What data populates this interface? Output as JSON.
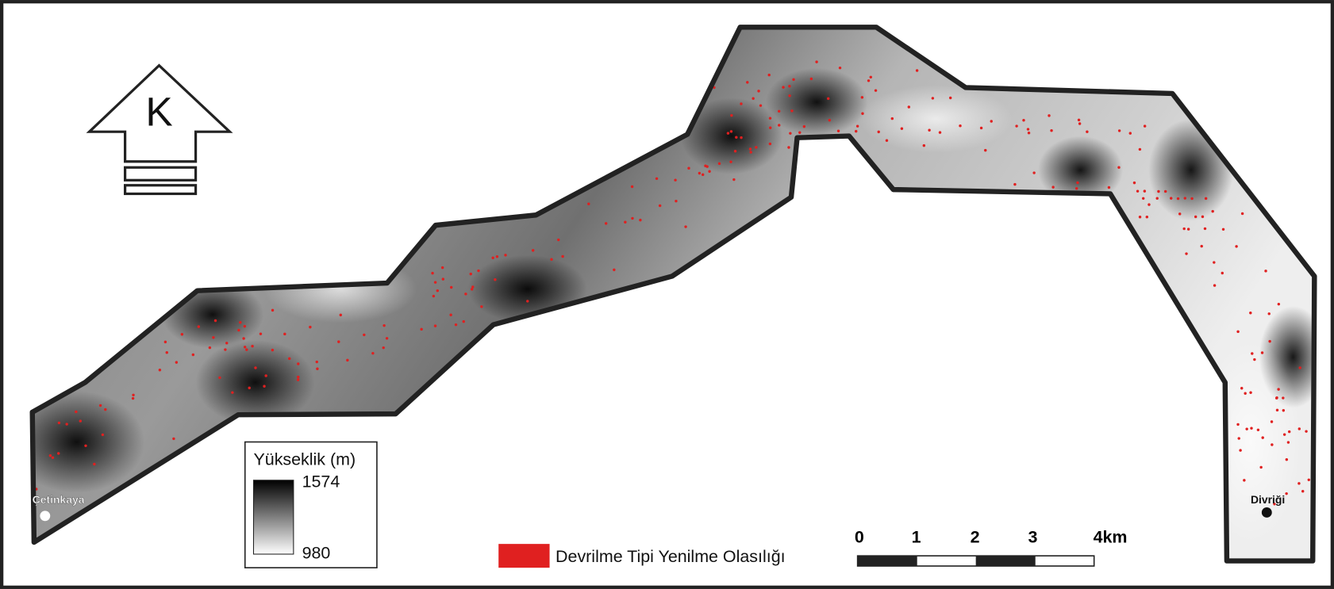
{
  "north_arrow": {
    "label": "K"
  },
  "legend": {
    "title": "Yükseklik (m)",
    "high": "1574",
    "low": "980"
  },
  "hazard_legend": {
    "label": "Devrilme Tipi Yenilme Olasılığı"
  },
  "places": [
    "Çetinkaya",
    "Divriği"
  ],
  "scale_bar": {
    "labels": [
      "0",
      "1",
      "2",
      "3",
      "4km"
    ]
  }
}
